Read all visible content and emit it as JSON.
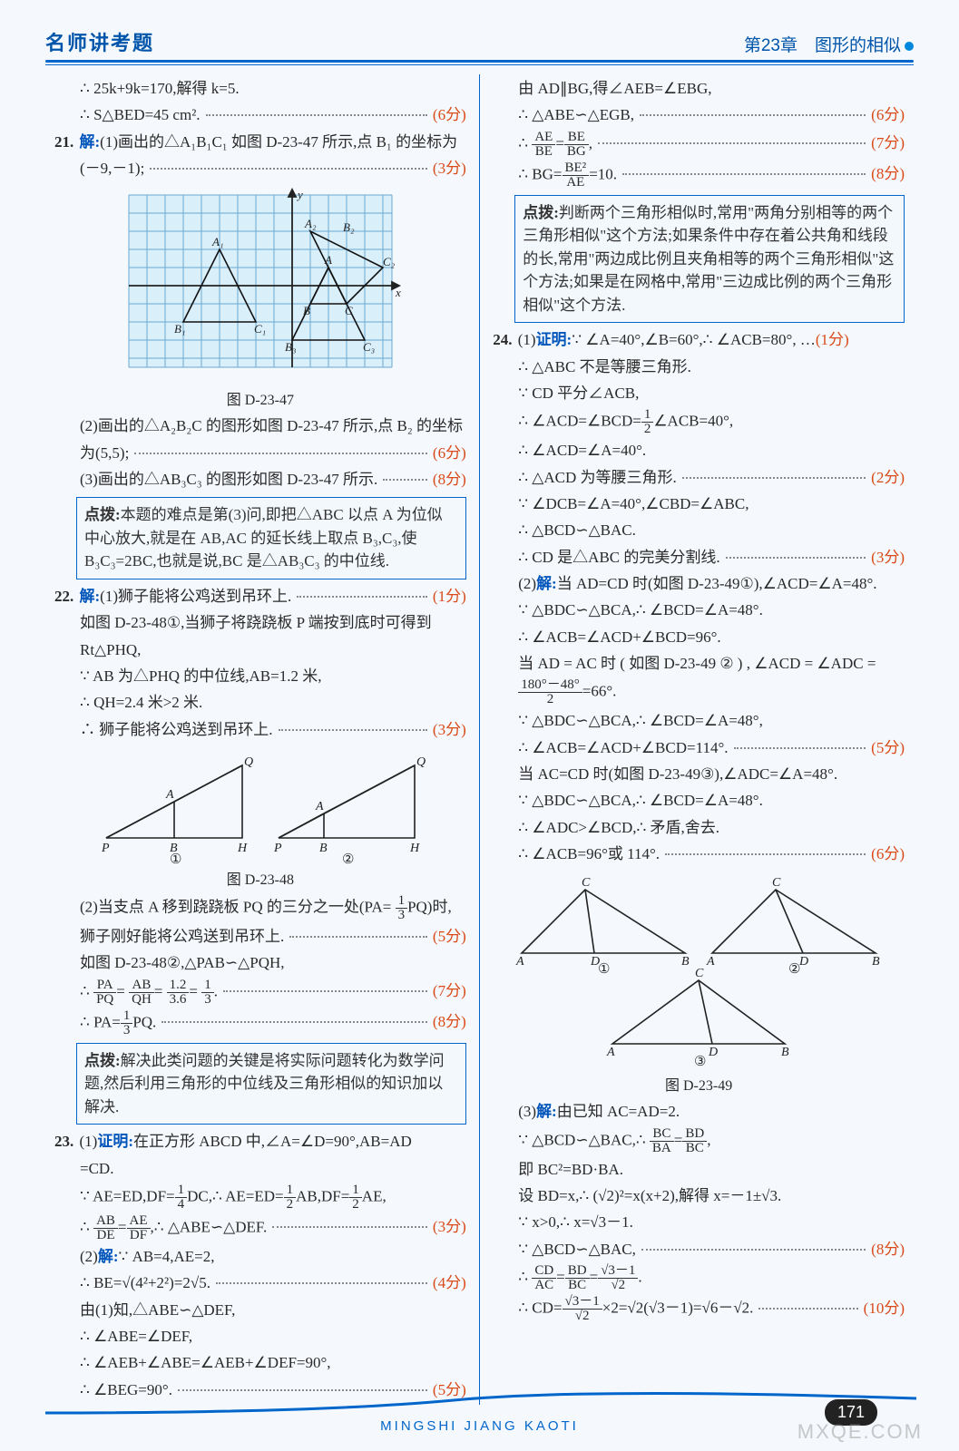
{
  "header": {
    "left": "名师讲考题",
    "right": "第23章　图形的相似"
  },
  "footer": {
    "pinyin": "MINGSHI  JIANG  KAOTI",
    "page": "171",
    "watermark": "MXQE.COM"
  },
  "col1": {
    "l1": "∴ 25k+9k=170,解得 k=5.",
    "l2": "∴ S△BED=45 cm².",
    "p2": "(6分)",
    "q21_lead": "21. 解:",
    "q21_1": "(1)画出的△A₁B₁C₁ 如图 D-23-47 所示,点 B₁ 的坐标为",
    "q21_1b": "(－9,－1);",
    "p21_1": "(3分)",
    "fig47_cap": "图 D-23-47",
    "q21_2": "(2)画出的△A₂B₂C 的图形如图 D-23-47 所示,点 B₂ 的坐标",
    "q21_2b": "为(5,5);",
    "p21_2": "(6分)",
    "q21_3": "(3)画出的△AB₃C₃ 的图形如图 D-23-47 所示.",
    "p21_3": "(8分)",
    "box1": "点拨:本题的难点是第(3)问,即把△ABC 以点 A 为位似中心放大,就是在 AB,AC 的延长线上取点 B₃,C₃,使 B₃C₃=2BC,也就是说,BC 是△AB₃C₃ 的中位线.",
    "q22_lead": "22. 解:",
    "q22_1": "(1)狮子能将公鸡送到吊环上.",
    "p22_1": "(1分)",
    "q22_1a": "如图 D-23-48①,当狮子将跷跷板 P 端按到底时可得到",
    "q22_1b": "Rt△PHQ,",
    "q22_1c": "∵ AB 为△PHQ 的中位线,AB=1.2 米,",
    "q22_1d": "∴ QH=2.4 米>2 米.",
    "q22_1e": "∴ 狮子能将公鸡送到吊环上.",
    "p22_1e": "(3分)",
    "fig48_cap": "图 D-23-48",
    "q22_2a": "(2)当支点 A 移到跷跷板 PQ 的三分之一处(PA= ",
    "q22_2a_frac_n": "1",
    "q22_2a_frac_d": "3",
    "q22_2a_end": "PQ)时,",
    "q22_2b": "狮子刚好能将公鸡送到吊环上.",
    "p22_2b": "(5分)",
    "q22_2c": "如图 D-23-48②,△PAB∽△PQH,",
    "q22_2d_pre": "∴ ",
    "q22_2d_f1n": "PA",
    "q22_2d_f1d": "PQ",
    "q22_2d_eq": "=",
    "q22_2d_f2n": "AB",
    "q22_2d_f2d": "QH",
    "q22_2d_eq2": "=",
    "q22_2d_f3n": "1.2",
    "q22_2d_f3d": "3.6",
    "q22_2d_eq3": "=",
    "q22_2d_f4n": "1",
    "q22_2d_f4d": "3",
    "q22_2d_end": ".",
    "p22_2d": "(7分)",
    "q22_2e_pre": "∴ PA=",
    "q22_2e_fn": "1",
    "q22_2e_fd": "3",
    "q22_2e_end": "PQ.",
    "p22_2e": "(8分)",
    "box2": "点拨:解决此类问题的关键是将实际问题转化为数学问题,然后利用三角形的中位线及三角形相似的知识加以解决.",
    "q23_lead": "23. ",
    "q23_1": "(1)证明:在正方形 ABCD 中,∠A=∠D=90°,AB=AD",
    "q23_1b": "=CD.",
    "q23_1c_pre": "∵ AE=ED,DF=",
    "q23_1c_f1n": "1",
    "q23_1c_f1d": "4",
    "q23_1c_mid": "DC,∴ AE=ED=",
    "q23_1c_f2n": "1",
    "q23_1c_f2d": "2",
    "q23_1c_mid2": "AB,DF=",
    "q23_1c_f3n": "1",
    "q23_1c_f3d": "2",
    "q23_1c_end": "AE,",
    "q23_1d_pre": "∴ ",
    "q23_1d_f1n": "AB",
    "q23_1d_f1d": "DE",
    "q23_1d_eq": "=",
    "q23_1d_f2n": "AE",
    "q23_1d_f2d": "DF",
    "q23_1d_end": ",∴ △ABE∽△DEF.",
    "p23_1d": "(3分)",
    "q23_2": "(2)解:∵ AB=4,AE=2,",
    "q23_2b": "∴ BE=√(4²+2²)=2√5.",
    "p23_2b": "(4分)",
    "q23_2c": "由(1)知,△ABE∽△DEF,",
    "q23_2d": "∴ ∠ABE=∠DEF,",
    "q23_2e": "∴ ∠AEB+∠ABE=∠AEB+∠DEF=90°,",
    "q23_2f": "∴ ∠BEG=90°.",
    "p23_2f": "(5分)"
  },
  "col2": {
    "l1": "由 AD∥BG,得∠AEB=∠EBG,",
    "l2": "∴ △ABE∽△EGB,",
    "p2": "(6分)",
    "l3_pre": "∴ ",
    "l3_f1n": "AE",
    "l3_f1d": "BE",
    "l3_eq": "=",
    "l3_f2n": "BE",
    "l3_f2d": "BG",
    "l3_end": ",",
    "p3": "(7分)",
    "l4_pre": "∴ BG=",
    "l4_fn": "BE²",
    "l4_fd": "AE",
    "l4_end": "=10.",
    "p4": "(8分)",
    "box1": "点拨:判断两个三角形相似时,常用\"两角分别相等的两个三角形相似\"这个方法;如果条件中存在着公共角和线段的长,常用\"两边成比例且夹角相等的两个三角形相似\"这个方法;如果是在网格中,常用\"三边成比例的两个三角形相似\"这个方法.",
    "q24_lead": "24. ",
    "q24_1": "(1)证明:∵ ∠A=40°,∠B=60°,∴ ∠ACB=80°, …",
    "p24_1": "(1分)",
    "q24_1a": "∴ △ABC 不是等腰三角形.",
    "q24_1b": "∵ CD 平分∠ACB,",
    "q24_1c_pre": "∴ ∠ACD=∠BCD=",
    "q24_1c_fn": "1",
    "q24_1c_fd": "2",
    "q24_1c_end": "∠ACB=40°,",
    "q24_1d": "∴ ∠ACD=∠A=40°.",
    "q24_1e": "∴ △ACD 为等腰三角形.",
    "p24_1e": "(2分)",
    "q24_1f": "∵ ∠DCB=∠A=40°,∠CBD=∠ABC,",
    "q24_1g": "∴ △BCD∽△BAC.",
    "q24_1h": "∴ CD 是△ABC 的完美分割线.",
    "p24_1h": "(3分)",
    "q24_2": "(2)解:当 AD=CD 时(如图 D-23-49①),∠ACD=∠A=48°.",
    "q24_2a": "∵ △BDC∽△BCA,∴ ∠BCD=∠A=48°.",
    "q24_2b": "∴ ∠ACB=∠ACD+∠BCD=96°.",
    "q24_2c": "当 AD = AC 时 ( 如图 D-23-49 ② ) , ∠ACD = ∠ADC =",
    "q24_2d_fn": "180°－48°",
    "q24_2d_fd": "2",
    "q24_2d_end": "=66°.",
    "q24_2e": "∵ △BDC∽△BCA,∴ ∠BCD=∠A=48°,",
    "q24_2f": "∴ ∠ACB=∠ACD+∠BCD=114°.",
    "p24_2f": "(5分)",
    "q24_2g": "当 AC=CD 时(如图 D-23-49③),∠ADC=∠A=48°.",
    "q24_2h": "∵ △BDC∽△BCA,∴ ∠BCD=∠A=48°.",
    "q24_2i": "∴ ∠ADC>∠BCD,∴ 矛盾,舍去.",
    "q24_2j": "∴ ∠ACB=96°或 114°.",
    "p24_2j": "(6分)",
    "fig49_cap": "图 D-23-49",
    "q24_3": "(3)解:由已知 AC=AD=2.",
    "q24_3a_pre": "∵ △BCD∽△BAC,∴ ",
    "q24_3a_f1n": "BC",
    "q24_3a_f1d": "BA",
    "q24_3a_eq": "=",
    "q24_3a_f2n": "BD",
    "q24_3a_f2d": "BC",
    "q24_3a_end": ",",
    "q24_3b": "即 BC²=BD·BA.",
    "q24_3c": "设 BD=x,∴ (√2)²=x(x+2),解得 x=－1±√3.",
    "q24_3d": "∵ x>0,∴ x=√3－1.",
    "q24_3e": "∵ △BCD∽△BAC,",
    "p24_3e": "(8分)",
    "q24_3f_pre": "∴ ",
    "q24_3f_f1n": "CD",
    "q24_3f_f1d": "AC",
    "q24_3f_eq": "=",
    "q24_3f_f2n": "BD",
    "q24_3f_f2d": "BC",
    "q24_3f_eq2": "=",
    "q24_3f_f3n": "√3－1",
    "q24_3f_f3d": "√2",
    "q24_3f_end": ".",
    "q24_3g_pre": "∴ CD=",
    "q24_3g_fn": "√3－1",
    "q24_3g_fd": "√2",
    "q24_3g_end": "×2=√2(√3－1)=√6－√2.",
    "p24_3g": "(10分)"
  },
  "figs": {
    "grid": {
      "bg": "#d9f0fb",
      "grid": "#6aa8d0",
      "axis": "#222",
      "tri": "#111",
      "labels": [
        "A",
        "B",
        "C",
        "A₁",
        "B₁",
        "C₁",
        "A₂",
        "B₂",
        "C₂",
        "B₃",
        "C₃",
        "x",
        "y"
      ]
    },
    "tri48": {
      "stroke": "#222",
      "labels": [
        "P",
        "A",
        "B",
        "H",
        "Q",
        "①",
        "②"
      ]
    },
    "tri49": {
      "stroke": "#222",
      "labels": [
        "A",
        "B",
        "C",
        "D",
        "①",
        "②",
        "③"
      ]
    }
  }
}
